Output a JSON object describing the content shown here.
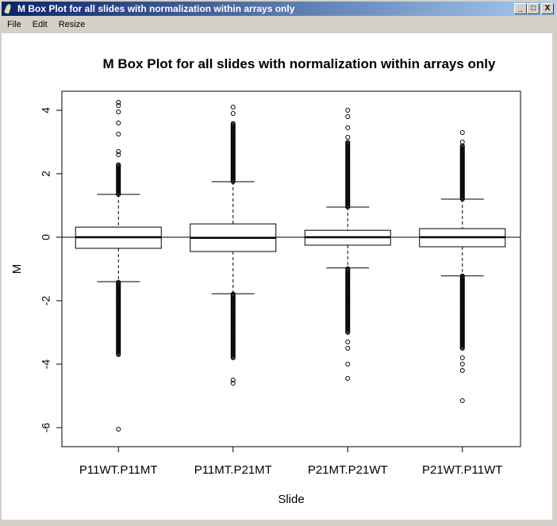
{
  "window": {
    "title": "M Box Plot for all slides with normalization within arrays only",
    "controls": [
      "_",
      "□",
      "X"
    ]
  },
  "menu": [
    "File",
    "Edit",
    "Resize"
  ],
  "chart_data": {
    "type": "boxplot",
    "title": "M Box Plot for all slides with normalization within arrays only",
    "xlabel": "Slide",
    "ylabel": "M",
    "ylim": [
      -6.6,
      4.6
    ],
    "yticks": [
      -6,
      -4,
      -2,
      0,
      2,
      4
    ],
    "hline": 0,
    "categories": [
      "P11WT.P11MT",
      "P11MT.P21MT",
      "P21MT.P21WT",
      "P21WT.P11WT"
    ],
    "boxes": [
      {
        "q1": -0.35,
        "median": 0,
        "q3": 0.32,
        "whisker_low": -1.4,
        "whisker_high": 1.35,
        "dense_outliers": [
          [
            1.35,
            2.3
          ],
          [
            -3.7,
            -1.4
          ]
        ],
        "outliers": [
          2.6,
          2.7,
          3.25,
          3.6,
          3.95,
          4.15,
          4.25,
          -6.05
        ]
      },
      {
        "q1": -0.45,
        "median": -0.02,
        "q3": 0.42,
        "whisker_low": -1.78,
        "whisker_high": 1.75,
        "dense_outliers": [
          [
            1.75,
            3.6
          ],
          [
            -3.8,
            -1.78
          ]
        ],
        "outliers": [
          3.9,
          4.1,
          -4.5,
          -4.6
        ]
      },
      {
        "q1": -0.25,
        "median": 0,
        "q3": 0.22,
        "whisker_low": -0.97,
        "whisker_high": 0.95,
        "dense_outliers": [
          [
            0.95,
            3.0
          ],
          [
            -3.0,
            -0.97
          ]
        ],
        "outliers": [
          3.15,
          3.45,
          3.8,
          4.0,
          -3.3,
          -3.5,
          -4.0,
          -4.45
        ]
      },
      {
        "q1": -0.3,
        "median": 0,
        "q3": 0.27,
        "whisker_low": -1.22,
        "whisker_high": 1.2,
        "dense_outliers": [
          [
            1.2,
            2.9
          ],
          [
            -3.5,
            -1.22
          ]
        ],
        "outliers": [
          3.0,
          3.3,
          -3.8,
          -4.0,
          -4.2,
          -5.15
        ]
      }
    ]
  }
}
